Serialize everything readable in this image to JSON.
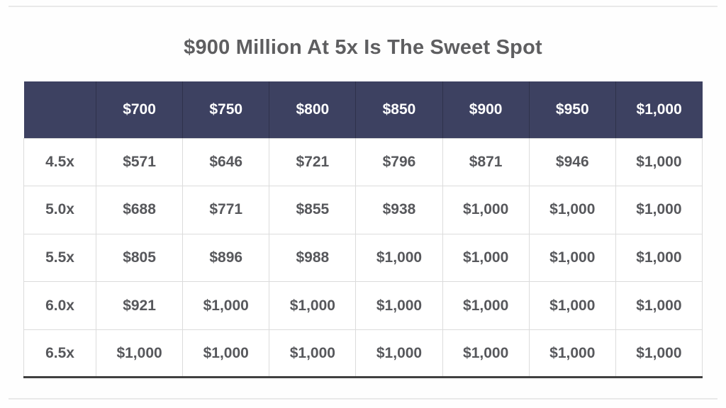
{
  "page": {
    "title": "$900 Million At 5x Is The Sweet Spot"
  },
  "chart_data": {
    "type": "table",
    "title": "$900 Million At 5x Is The Sweet Spot",
    "column_headers": [
      "",
      "$700",
      "$750",
      "$800",
      "$850",
      "$900",
      "$950",
      "$1,000"
    ],
    "row_headers": [
      "4.5x",
      "5.0x",
      "5.5x",
      "6.0x",
      "6.5x"
    ],
    "rows": [
      [
        "$571",
        "$646",
        "$721",
        "$796",
        "$871",
        "$946",
        "$1,000"
      ],
      [
        "$688",
        "$771",
        "$855",
        "$938",
        "$1,000",
        "$1,000",
        "$1,000"
      ],
      [
        "$805",
        "$896",
        "$988",
        "$1,000",
        "$1,000",
        "$1,000",
        "$1,000"
      ],
      [
        "$921",
        "$1,000",
        "$1,000",
        "$1,000",
        "$1,000",
        "$1,000",
        "$1,000"
      ],
      [
        "$1,000",
        "$1,000",
        "$1,000",
        "$1,000",
        "$1,000",
        "$1,000",
        "$1,000"
      ]
    ],
    "layout": {
      "legend": "none",
      "grid": "on",
      "header_position": "top"
    }
  },
  "style": {
    "header_bg": "#3d4161",
    "header_text": "#ffffff",
    "cell_text": "#57585c",
    "title_color": "#5e5e60",
    "grid_border": "#dcdcdc",
    "bottom_border": "#404040",
    "rule_color": "#e9e9e9",
    "page_bg": "#fefefe"
  }
}
